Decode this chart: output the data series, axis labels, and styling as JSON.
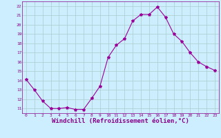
{
  "x": [
    0,
    1,
    2,
    3,
    4,
    5,
    6,
    7,
    8,
    9,
    10,
    11,
    12,
    13,
    14,
    15,
    16,
    17,
    18,
    19,
    20,
    21,
    22,
    23
  ],
  "y": [
    14.1,
    13.0,
    11.8,
    11.0,
    11.0,
    11.1,
    10.9,
    10.9,
    12.1,
    13.4,
    16.5,
    17.8,
    18.5,
    20.4,
    21.1,
    21.1,
    21.9,
    20.8,
    19.0,
    18.2,
    17.0,
    16.0,
    15.5,
    15.1
  ],
  "line_color": "#990099",
  "marker": "*",
  "marker_size": 3,
  "bg_color": "#cceeff",
  "grid_color": "#aacccc",
  "xlabel": "Windchill (Refroidissement éolien,°C)",
  "xlabel_fontsize": 6.5,
  "label_color": "#880088",
  "ytick_labels": [
    "11",
    "12",
    "13",
    "14",
    "15",
    "16",
    "17",
    "18",
    "19",
    "20",
    "21",
    "22"
  ],
  "xtick_labels": [
    "0",
    "1",
    "2",
    "3",
    "4",
    "5",
    "6",
    "7",
    "8",
    "9",
    "10",
    "11",
    "12",
    "13",
    "14",
    "15",
    "16",
    "17",
    "18",
    "19",
    "20",
    "21",
    "22",
    "23"
  ],
  "ylim": [
    10.5,
    22.5
  ],
  "xlim": [
    -0.5,
    23.5
  ],
  "yticks": [
    11,
    12,
    13,
    14,
    15,
    16,
    17,
    18,
    19,
    20,
    21,
    22
  ],
  "xticks": [
    0,
    1,
    2,
    3,
    4,
    5,
    6,
    7,
    8,
    9,
    10,
    11,
    12,
    13,
    14,
    15,
    16,
    17,
    18,
    19,
    20,
    21,
    22,
    23
  ]
}
